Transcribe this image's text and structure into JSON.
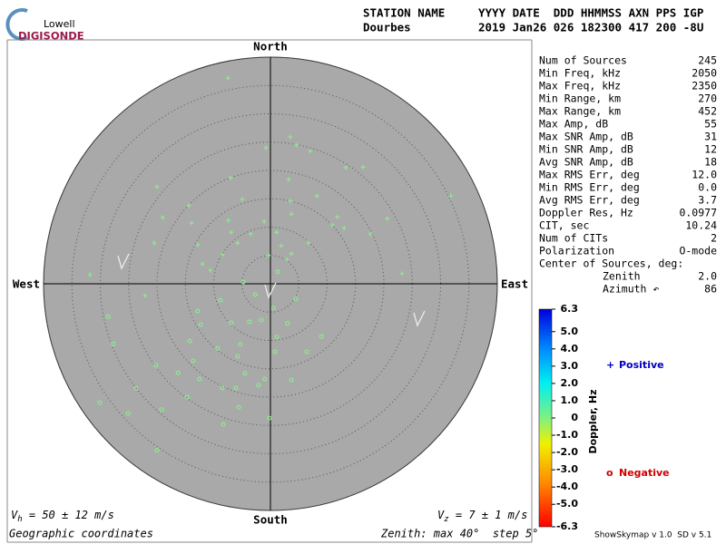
{
  "header": {
    "logo_top": "Lowell",
    "logo_bottom": "DIGISONDE",
    "station_label": "STATION NAME",
    "station": "Dourbes",
    "columns": "YYYY DATE  DDD HHMMSS AXN PPS IGP",
    "values": "2019 Jan26 026 182300 417 200 -8U"
  },
  "chart_data": {
    "type": "skymap",
    "directions": {
      "north": "North",
      "south": "South",
      "east": "East",
      "west": "West"
    },
    "xlim": [
      -40,
      40
    ],
    "ylim": [
      -40,
      40
    ],
    "rings": [
      5,
      10,
      15,
      20,
      25,
      30,
      35,
      40
    ],
    "series": [
      {
        "name": "Positive",
        "marker": "+",
        "color": "#8cf08c",
        "legend_color": "#0000c0",
        "x": [
          -7.5,
          3.5,
          -0.8,
          4.6,
          7.0,
          13.3,
          16.3,
          -7.0,
          3.2,
          8.2,
          -20.0,
          -14.4,
          -5.0,
          3.5,
          31.8,
          -13.9,
          -7.4,
          -1.1,
          3.7,
          11.8,
          20.6,
          -19.0,
          -6.9,
          -3.5,
          1.1,
          10.9,
          17.6,
          -20.5,
          -12.8,
          -5.8,
          1.9,
          6.7,
          -8.5,
          -0.3,
          3.7,
          -10.6,
          2.9,
          23.2,
          -31.8,
          -22.1,
          13.0,
          -12.0
        ],
        "y": [
          36.3,
          25.9,
          24.0,
          24.5,
          23.4,
          20.5,
          20.6,
          18.7,
          18.4,
          15.5,
          17.1,
          13.8,
          14.9,
          14.6,
          15.5,
          10.7,
          11.2,
          11.0,
          12.3,
          11.8,
          11.5,
          11.7,
          9.1,
          8.8,
          9.1,
          10.4,
          8.8,
          7.2,
          6.9,
          7.2,
          6.7,
          7.2,
          5.1,
          5.0,
          5.3,
          2.4,
          4.3,
          1.8,
          1.6,
          -2.1,
          9.8,
          3.5
        ]
      },
      {
        "name": "Negative",
        "marker": "o",
        "color": "#8cf08c",
        "legend_color": "#d00000",
        "x": [
          -4.8,
          1.3,
          -2.7,
          -8.8,
          -12.8,
          0.5,
          4.5,
          -28.6,
          -12.3,
          -6.9,
          -1.6,
          3.0,
          -5.3,
          -14.2,
          -27.7,
          -9.3,
          1.1,
          9.0,
          -20.2,
          -13.6,
          -5.8,
          0.8,
          6.4,
          -16.3,
          -12.5,
          -8.5,
          -4.5,
          -1.0,
          3.7,
          -23.7,
          -14.7,
          -6.1,
          -2.1,
          -30.1,
          -19.2,
          -5.6,
          -0.2,
          -25.1,
          -8.3,
          -20.0,
          -3.7
        ],
        "y": [
          0.3,
          2.1,
          -1.9,
          -2.9,
          -4.8,
          -4.3,
          -2.7,
          -5.8,
          -7.2,
          -6.9,
          -6.4,
          -7.0,
          -10.7,
          -10.1,
          -10.6,
          -11.4,
          -9.4,
          -9.3,
          -14.4,
          -13.6,
          -12.8,
          -12.0,
          -12.0,
          -15.7,
          -16.8,
          -18.4,
          -15.8,
          -16.8,
          -17.0,
          -18.4,
          -20.0,
          -18.4,
          -17.9,
          -21.0,
          -22.2,
          -21.8,
          -23.7,
          -22.9,
          -24.8,
          -29.4,
          -6.7
        ]
      }
    ],
    "colorbar": {
      "label": "Doppler, Hz",
      "lim": [
        -6.3,
        6.3
      ],
      "ticks": [
        6.3,
        {
          "value": 5,
          "label": "5.0"
        },
        {
          "value": 4,
          "label": "4.0"
        },
        {
          "value": 3,
          "label": "3.0"
        },
        {
          "value": 2,
          "label": "2.0"
        },
        {
          "value": 1,
          "label": "1.0"
        },
        0,
        {
          "value": -1,
          "label": "-1.0"
        },
        {
          "value": -2,
          "label": "-2.0"
        },
        {
          "value": -3,
          "label": "-3.0"
        },
        {
          "value": -4,
          "label": "-4.0"
        },
        {
          "value": -5,
          "label": "-5.0"
        },
        -6.3
      ]
    },
    "velocity_h": {
      "symbol": "V",
      "sub": "h",
      "text": " = 50 ± 12 m/s"
    },
    "velocity_z": {
      "symbol": "V",
      "sub": "z",
      "text": " = 7 ± 1 m/s"
    },
    "coordinates": "Geographic coordinates",
    "zenith_note": "Zenith: max 40°  step 5°"
  },
  "stats": {
    "rows": [
      [
        "Num of Sources",
        "245"
      ],
      [
        "Min Freq, kHz",
        "2050"
      ],
      [
        "Max Freq, kHz",
        "2350"
      ],
      [
        "Min Range, km",
        "270"
      ],
      [
        "Max Range, km",
        "452"
      ],
      [
        "Max Amp, dB",
        "55"
      ],
      [
        "Max SNR Amp, dB",
        "31"
      ],
      [
        "Min SNR Amp, dB",
        "12"
      ],
      [
        "Avg SNR Amp, dB",
        "18"
      ],
      [
        "Max RMS Err, deg",
        "12.0"
      ],
      [
        "Min RMS Err, deg",
        "0.0"
      ],
      [
        "Avg RMS Err, deg",
        "3.7"
      ],
      [
        "Doppler Res, Hz",
        "0.0977"
      ],
      [
        "CIT, sec",
        "10.24"
      ],
      [
        "Num of CITs",
        "2"
      ],
      [
        "Polarization",
        "O-mode"
      ]
    ],
    "center_title": "Center of Sources, deg:",
    "center_rows": [
      [
        "Zenith",
        "2.0"
      ],
      [
        "Azimuth ↶",
        "86"
      ]
    ]
  },
  "footer": {
    "version": "ShowSkymap v 1.0  SD v 5.1"
  }
}
